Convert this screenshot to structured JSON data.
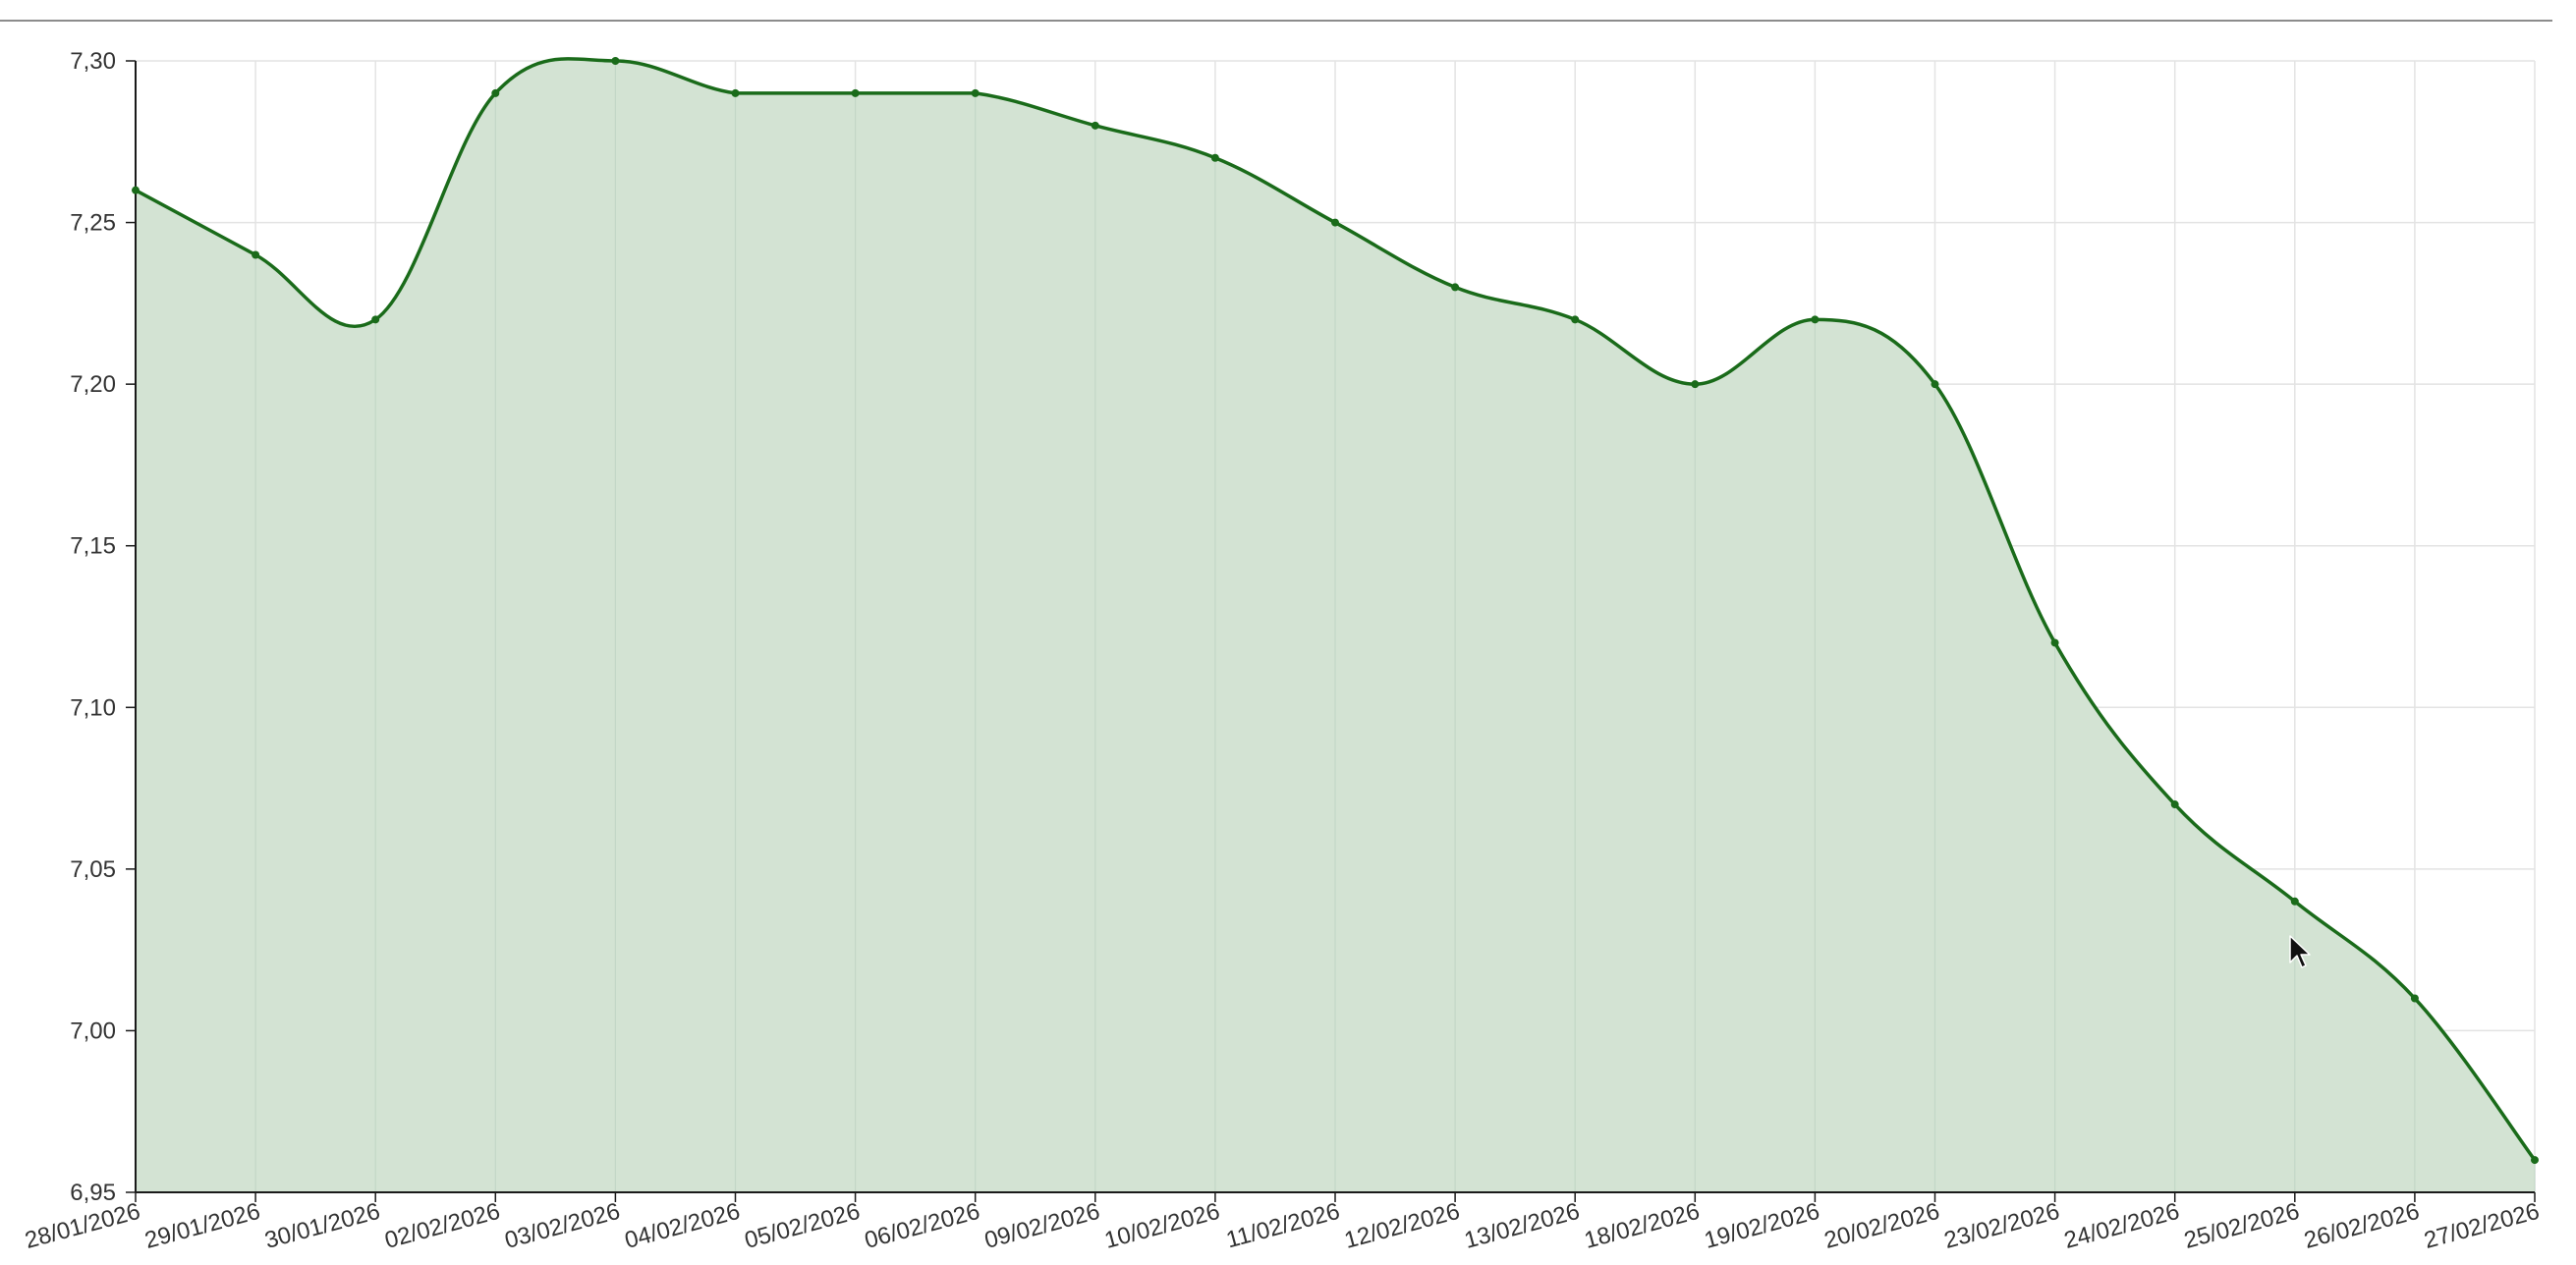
{
  "chart_data": {
    "type": "area",
    "title": "",
    "xlabel": "",
    "ylabel": "",
    "categories": [
      "28/01/2026",
      "29/01/2026",
      "30/01/2026",
      "02/02/2026",
      "03/02/2026",
      "04/02/2026",
      "05/02/2026",
      "06/02/2026",
      "09/02/2026",
      "10/02/2026",
      "11/02/2026",
      "12/02/2026",
      "13/02/2026",
      "18/02/2026",
      "19/02/2026",
      "20/02/2026",
      "23/02/2026",
      "24/02/2026",
      "25/02/2026",
      "26/02/2026",
      "27/02/2026"
    ],
    "series": [
      {
        "values": [
          7.26,
          7.24,
          7.22,
          7.29,
          7.3,
          7.29,
          7.29,
          7.29,
          7.28,
          7.27,
          7.25,
          7.23,
          7.22,
          7.2,
          7.22,
          7.2,
          7.12,
          7.07,
          7.04,
          7.01,
          6.96
        ]
      }
    ],
    "ylim": [
      6.95,
      7.3
    ],
    "yticks": [
      "6,95",
      "7,00",
      "7,05",
      "7,10",
      "7,15",
      "7,20",
      "7,25",
      "7,30"
    ],
    "grid": true,
    "legend": "none",
    "colors": {
      "line": "#1a6b1a",
      "fill": "#d3e3d3",
      "grid": "#e3e3e3",
      "axis": "#1a1a1a"
    }
  },
  "ui": {
    "cursor_icon": "arrow-cursor-icon"
  }
}
